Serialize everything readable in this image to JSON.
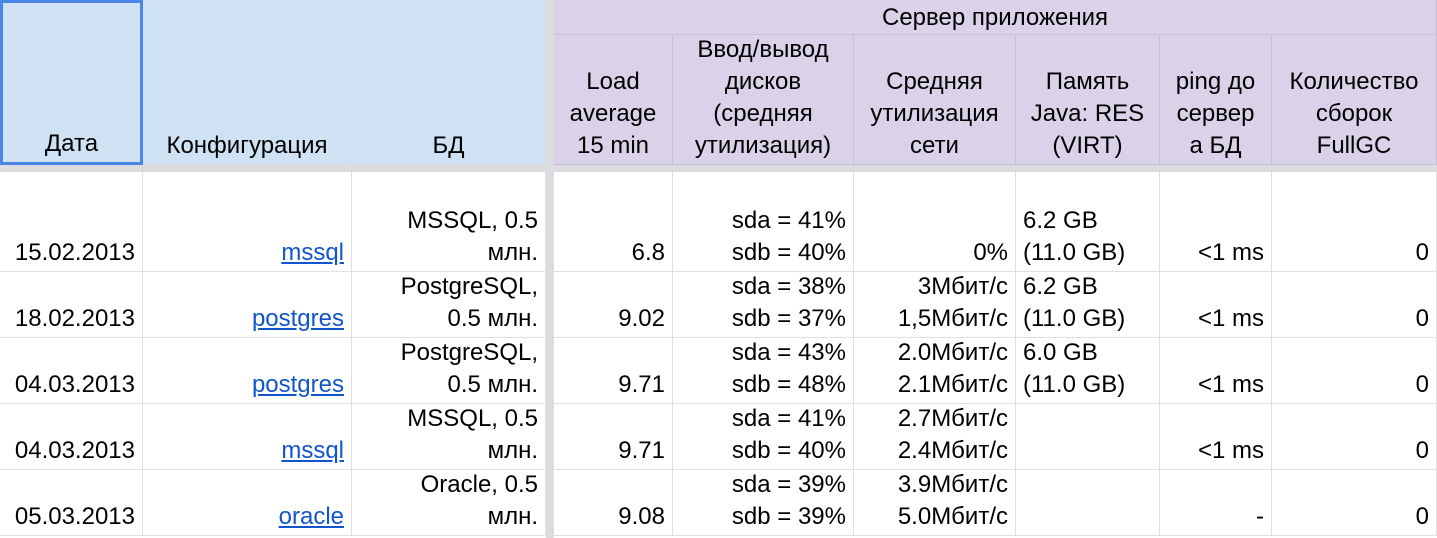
{
  "sheet": {
    "group_header": "Сервер приложения",
    "headers": {
      "date": [
        "Дата"
      ],
      "config": [
        "Конфигурация"
      ],
      "db": [
        "БД"
      ],
      "load": [
        "Load",
        "average",
        "15 min"
      ],
      "disk": [
        "Ввод/вывод",
        "дисков",
        "(средняя",
        "утилизация)"
      ],
      "net": [
        "Средняя",
        "утилизация",
        "сети"
      ],
      "mem": [
        "Память",
        "Java: RES",
        "(VIRT)"
      ],
      "ping": [
        "ping до",
        "сервер",
        "а БД"
      ],
      "gc": [
        "Количество",
        "сборок",
        "FullGC"
      ]
    },
    "rows": [
      {
        "date": "15.02.2013",
        "config": "mssql",
        "db": [
          "MSSQL, 0.5",
          "млн."
        ],
        "load": "6.8",
        "disk": [
          "sda = 41%",
          "sdb = 40%"
        ],
        "net": [
          "0%"
        ],
        "mem": [
          "6.2 GB",
          "(11.0 GB)"
        ],
        "ping": "<1 ms",
        "gc": "0"
      },
      {
        "date": "18.02.2013",
        "config": "postgres",
        "db": [
          "PostgreSQL,",
          "0.5 млн."
        ],
        "load": "9.02",
        "disk": [
          "sda = 38%",
          "sdb = 37%"
        ],
        "net": [
          "3Мбит/с",
          "1,5Мбит/с"
        ],
        "mem": [
          "6.2 GB",
          "(11.0 GB)"
        ],
        "ping": "<1 ms",
        "gc": "0"
      },
      {
        "date": "04.03.2013",
        "config": "postgres",
        "db": [
          "PostgreSQL,",
          "0.5 млн."
        ],
        "load": "9.71",
        "disk": [
          "sda = 43%",
          "sdb = 48%"
        ],
        "net": [
          "2.0Мбит/с",
          "2.1Мбит/с"
        ],
        "mem": [
          "6.0 GB",
          "(11.0 GB)"
        ],
        "ping": "<1 ms",
        "gc": "0"
      },
      {
        "date": "04.03.2013",
        "config": "mssql",
        "db": [
          "MSSQL, 0.5",
          "млн."
        ],
        "load": "9.71",
        "disk": [
          "sda = 41%",
          "sdb = 40%"
        ],
        "net": [
          "2.7Мбит/с",
          "2.4Мбит/с"
        ],
        "mem": [],
        "ping": "<1 ms",
        "gc": "0"
      },
      {
        "date": "05.03.2013",
        "config": "oracle",
        "db": [
          "Oracle, 0.5",
          "млн."
        ],
        "load": "9.08",
        "disk": [
          "sda = 39%",
          "sdb = 39%"
        ],
        "net": [
          "3.9Мбит/с",
          "5.0Мбит/с"
        ],
        "mem": [],
        "ping": "-",
        "gc": "0"
      }
    ]
  }
}
